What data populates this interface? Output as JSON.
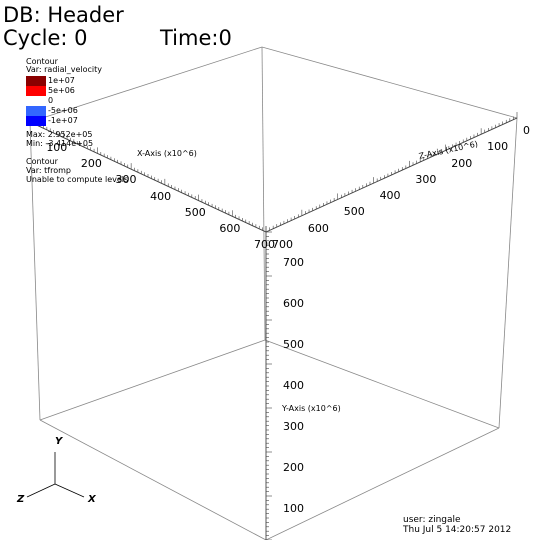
{
  "header": {
    "db": "DB: Header",
    "cycle": "Cycle: 0",
    "time": "Time:0"
  },
  "legend1": {
    "plot_type": "Contour",
    "var": "Var: radial_velocity",
    "levels": [
      {
        "label": "1e+07",
        "color": "#8b0000"
      },
      {
        "label": "5e+06",
        "color": "#ff0000"
      },
      {
        "label": "0",
        "color": "#ffffff"
      },
      {
        "label": "-5e+06",
        "color": "#3366ff"
      },
      {
        "label": "-1e+07",
        "color": "#0000ff"
      }
    ],
    "max": "Max: 2.952e+05",
    "min": "Min: -3.414e+05"
  },
  "legend2": {
    "plot_type": "Contour",
    "var": "Var: tfromp",
    "note": "Unable to compute levels"
  },
  "axes": {
    "x_title": "X-Axis (x10^6)",
    "y_title": "Y-Axis (x10^6)",
    "z_title": "Z-Axis (x10^6)",
    "x_ticks": [
      "100",
      "200",
      "300",
      "400",
      "500",
      "600",
      "700"
    ],
    "y_ticks": [
      "100",
      "200",
      "300",
      "400",
      "500",
      "600",
      "700"
    ],
    "z_ticks": [
      "0",
      "100",
      "200",
      "300",
      "400",
      "500",
      "600",
      "700"
    ]
  },
  "triad": {
    "x": "X",
    "y": "Y",
    "z": "Z"
  },
  "footer": {
    "user": "user: zingale",
    "date": "Thu Jul  5 14:20:57 2012"
  }
}
